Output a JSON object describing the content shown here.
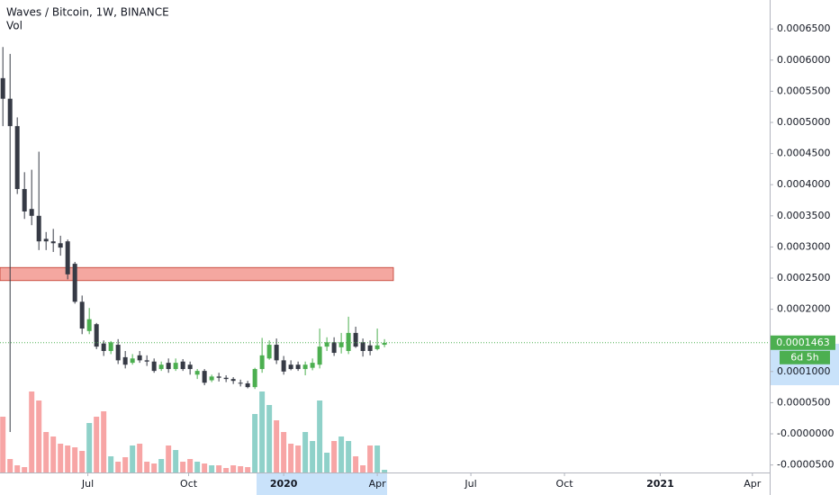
{
  "chart_data": {
    "type": "candlestick",
    "title": "Waves / Bitcoin, 1W, BINANCE",
    "subtitle": "Vol",
    "categories": [
      null,
      null,
      null,
      null,
      null,
      null,
      null,
      null,
      null,
      null,
      null,
      null,
      null,
      null,
      null,
      null,
      null,
      null,
      null,
      null,
      null,
      null,
      null,
      null,
      null,
      null,
      null,
      null,
      null,
      null,
      null,
      null,
      null,
      null,
      null,
      null,
      null,
      null,
      null,
      null,
      null,
      null,
      null,
      null,
      null,
      null,
      null,
      null,
      null,
      null,
      null,
      null,
      null,
      null
    ],
    "open": [
      0.000571,
      0.000538,
      0.000494,
      0.000393,
      0.000361,
      0.00035,
      0.000313,
      0.000309,
      0.000306,
      0.000309,
      0.000273,
      0.000212,
      0.000165,
      0.000176,
      0.000145,
      0.000133,
      0.000143,
      0.000123,
      0.000114,
      0.000126,
      0.000118,
      0.000116,
      0.000104,
      0.000114,
      0.000104,
      0.000116,
      0.000111,
      9.5e-05,
      0.000101,
      8.6e-05,
      9.2e-05,
      9e-05,
      8.8e-05,
      8.2e-05,
      8.1e-05,
      7.5e-05,
      0.000104,
      0.000121,
      0.000143,
      0.000118,
      0.000111,
      0.000111,
      0.000104,
      0.000106,
      0.000111,
      0.00014,
      0.000147,
      0.000139,
      0.000133,
      0.000162,
      0.000147,
      0.000142,
      0.000136,
      0.000143
    ],
    "high": [
      0.000621,
      0.00061,
      0.000508,
      0.00042,
      0.000424,
      0.000453,
      0.000324,
      0.000329,
      0.000318,
      0.000312,
      0.000276,
      0.000222,
      0.000202,
      0.000178,
      0.00015,
      0.000149,
      0.000152,
      0.000133,
      0.000128,
      0.000133,
      0.000126,
      0.000121,
      0.000116,
      0.000121,
      0.000121,
      0.00012,
      0.000116,
      0.000104,
      0.000104,
      9.5e-05,
      9.8e-05,
      9.4e-05,
      9.1e-05,
      8.7e-05,
      8.5e-05,
      0.000106,
      0.000154,
      0.00015,
      0.000153,
      0.000125,
      0.000118,
      0.000116,
      0.000116,
      0.000121,
      0.000169,
      0.000155,
      0.000155,
      0.000162,
      0.000188,
      0.000172,
      0.000153,
      0.00015,
      0.000169,
      0.000152
    ],
    "low": [
      0.000494,
      3e-06,
      0.000385,
      0.000345,
      0.000335,
      0.000295,
      0.000295,
      0.000292,
      0.000286,
      0.000248,
      0.000209,
      0.00016,
      0.00016,
      0.000136,
      0.000125,
      0.000128,
      0.000112,
      0.000105,
      0.000111,
      0.000114,
      0.000109,
      9.8e-05,
      0.000101,
      9.8e-05,
      0.000101,
      0.000101,
      9.5e-05,
      8.8e-05,
      7.8e-05,
      8.3e-05,
      8.4e-05,
      8.3e-05,
      8e-05,
      7.6e-05,
      7.3e-05,
      7.2e-05,
      9.8e-05,
      0.000119,
      0.000112,
      9.5e-05,
      0.000102,
      0.000101,
      9.4e-05,
      0.000102,
      0.000105,
      0.000133,
      0.000125,
      0.000129,
      0.000128,
      0.000138,
      0.000124,
      0.000126,
      0.000134,
      0.000139
    ],
    "close": [
      0.000538,
      0.000494,
      0.000393,
      0.000357,
      0.00035,
      0.000309,
      0.000309,
      0.000306,
      0.000299,
      0.000256,
      0.000212,
      0.000169,
      0.000184,
      0.00014,
      0.000133,
      0.000147,
      0.000118,
      0.000111,
      0.000121,
      0.000118,
      0.000116,
      0.000101,
      0.000111,
      0.000104,
      0.000114,
      0.000104,
      0.000104,
      0.000101,
      8.2e-05,
      9.2e-05,
      9e-05,
      8.8e-05,
      8.5e-05,
      8.1e-05,
      7.5e-05,
      0.000104,
      0.000126,
      0.000143,
      0.000118,
      0.0001,
      0.000104,
      0.000104,
      0.000111,
      0.000114,
      0.00014,
      0.000147,
      0.00013,
      0.000147,
      0.000162,
      0.00014,
      0.000133,
      0.000133,
      0.000142,
      0.000146
    ],
    "volume": [
      62,
      15,
      8,
      6,
      90,
      80,
      45,
      40,
      32,
      30,
      28,
      24,
      55,
      62,
      68,
      18,
      12,
      17,
      30,
      32,
      12,
      10,
      15,
      30,
      25,
      12,
      15,
      12,
      10,
      8,
      8,
      5,
      8,
      7,
      6,
      65,
      90,
      75,
      58,
      45,
      32,
      30,
      45,
      35,
      80,
      22,
      35,
      40,
      35,
      18,
      8,
      30,
      30,
      3
    ],
    "up_color": "#4caf50",
    "down_color": "#363a45",
    "volume_up_color": "#8fd1c9",
    "volume_down_color": "#f7a5a5",
    "xlim": [
      -0.4,
      106.5
    ],
    "xticks": [
      {
        "value": 11.8,
        "label": "Jul"
      },
      {
        "value": 25.8,
        "label": "Oct"
      },
      {
        "value": 39,
        "label": "2020"
      },
      {
        "value": 52,
        "label": "Apr"
      },
      {
        "value": 65,
        "label": "Jul"
      },
      {
        "value": 78,
        "label": "Oct"
      },
      {
        "value": 91.3,
        "label": "2021"
      },
      {
        "value": 104.1,
        "label": "Apr"
      }
    ],
    "ylim": [
      -6.21e-05,
      0.0006965
    ],
    "yticks": [
      {
        "value": -5e-05,
        "label": "-0.0000500"
      },
      {
        "value": 0,
        "label": "-0.0000000"
      },
      {
        "value": 5e-05,
        "label": "0.0000500"
      },
      {
        "value": 0.0001,
        "label": "0.0001000"
      },
      {
        "value": 0.00015,
        "label": "0.0001500"
      },
      {
        "value": 0.0002,
        "label": "0.0002000"
      },
      {
        "value": 0.00025,
        "label": "0.0002500"
      },
      {
        "value": 0.0003,
        "label": "0.0003000"
      },
      {
        "value": 0.00035,
        "label": "0.0003500"
      },
      {
        "value": 0.0004,
        "label": "0.0004000"
      },
      {
        "value": 0.00045,
        "label": "0.0004500"
      },
      {
        "value": 0.0005,
        "label": "0.0005000"
      },
      {
        "value": 0.00055,
        "label": "0.0005500"
      },
      {
        "value": 0.0006,
        "label": "0.0006000"
      },
      {
        "value": 0.00065,
        "label": "0.0006500"
      }
    ],
    "last_price": {
      "value": 0.0001463,
      "label": "0.0001463"
    },
    "countdown": "6d 5h",
    "zone": [
      0.000246,
      0.000267
    ]
  }
}
